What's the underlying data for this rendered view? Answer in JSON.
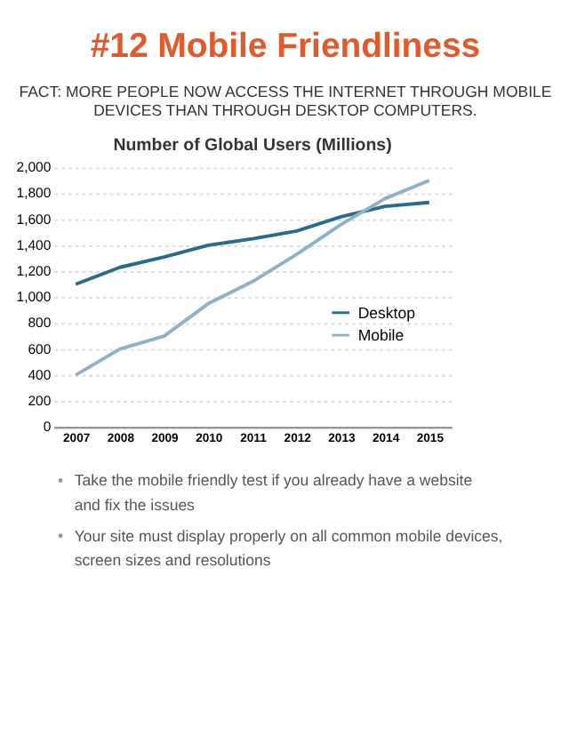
{
  "chart_data": {
    "type": "line",
    "title": "#12 Mobile Friendliness",
    "subtitle": "FACT: MORE PEOPLE NOW ACCESS THE INTERNET THROUGH MOBILE DEVICES THAN THROUGH DESKTOP COMPUTERS.",
    "annotations": [
      "Number of Global Users (Millions)",
      "Take the mobile friendly test if you already have a website and fix the issues",
      "Your site must display properly on all common mobile devices, screen sizes and resolutions"
    ],
    "categories": [
      "2007",
      "2008",
      "2009",
      "2010",
      "2011",
      "2012",
      "2013",
      "2014",
      "2015"
    ],
    "series": [
      {
        "name": "Desktop",
        "color": "#2a6a8a",
        "values": [
          1100,
          1230,
          1310,
          1400,
          1450,
          1510,
          1620,
          1700,
          1730
        ]
      },
      {
        "name": "Mobile",
        "color": "#8fb2c9",
        "values": [
          400,
          600,
          700,
          950,
          1120,
          1330,
          1560,
          1760,
          1900
        ]
      }
    ],
    "ylim": [
      0,
      2000
    ],
    "yticks": [
      {
        "value": 0,
        "label": "0"
      },
      {
        "value": 200,
        "label": "200"
      },
      {
        "value": 400,
        "label": "400"
      },
      {
        "value": 600,
        "label": "600"
      },
      {
        "value": 800,
        "label": "800"
      },
      {
        "value": 1000,
        "label": "1,000"
      },
      {
        "value": 1200,
        "label": "1,200"
      },
      {
        "value": 1400,
        "label": "1,400"
      },
      {
        "value": 1600,
        "label": "1,600"
      },
      {
        "value": 1800,
        "label": "1,800"
      },
      {
        "value": 2000,
        "label": "2,000"
      }
    ],
    "grid": "y",
    "legend": "right",
    "marker": "none",
    "line_style": "solid"
  }
}
